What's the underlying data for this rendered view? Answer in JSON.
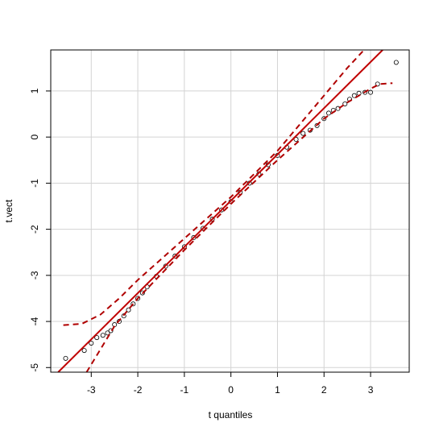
{
  "chart_data": {
    "type": "qq",
    "xlabel": "t quantiles",
    "ylabel": "t.vect",
    "xlim": [
      -3.87,
      3.83
    ],
    "ylim": [
      -5.1,
      1.89
    ],
    "xticks": [
      -3,
      -2,
      -1,
      0,
      1,
      2,
      3
    ],
    "yticks": [
      -5,
      -4,
      -3,
      -2,
      -1,
      0,
      1
    ],
    "grid": true,
    "points": {
      "color": "#000000",
      "x": [
        -3.55,
        -3.15,
        -3.0,
        -2.88,
        -2.75,
        -2.65,
        -2.58,
        -2.5,
        -2.4,
        -2.3,
        -2.2,
        -2.1,
        -2.0,
        -1.9,
        -1.8,
        -1.6,
        -1.4,
        -1.2,
        -1.0,
        -0.8,
        -0.6,
        -0.4,
        -0.2,
        0,
        0.2,
        0.4,
        0.6,
        0.8,
        1.0,
        1.2,
        1.4,
        1.55,
        1.7,
        1.85,
        2.0,
        2.1,
        2.2,
        2.3,
        2.45,
        2.55,
        2.65,
        2.75,
        2.88,
        3.0,
        3.15,
        3.55
      ],
      "y": [
        -4.8,
        -4.63,
        -4.47,
        -4.35,
        -4.3,
        -4.25,
        -4.2,
        -4.07,
        -4.0,
        -3.88,
        -3.75,
        -3.62,
        -3.5,
        -3.38,
        -3.25,
        -3.02,
        -2.8,
        -2.58,
        -2.38,
        -2.18,
        -1.98,
        -1.78,
        -1.58,
        -1.4,
        -1.2,
        -1.0,
        -0.8,
        -0.6,
        -0.4,
        -0.22,
        -0.05,
        0.08,
        0.15,
        0.25,
        0.4,
        0.52,
        0.58,
        0.62,
        0.72,
        0.82,
        0.9,
        0.95,
        0.97,
        0.97,
        1.15,
        1.62
      ]
    },
    "reference_line": {
      "color": "#c00000",
      "x": [
        -3.71,
        3.26
      ],
      "y": [
        -5.1,
        1.89
      ]
    },
    "envelope_upper": {
      "color": "#b00000",
      "x": [
        -3.6,
        -3.2,
        -2.8,
        -2.4,
        -2.0,
        -1.0,
        0,
        1.0,
        1.5,
        2.0,
        2.5,
        2.86
      ],
      "y": [
        -4.08,
        -4.05,
        -3.85,
        -3.5,
        -3.1,
        -2.2,
        -1.3,
        -0.3,
        0.3,
        0.9,
        1.5,
        1.89
      ]
    },
    "envelope_lower": {
      "color": "#b00000",
      "x": [
        -3.1,
        -2.5,
        -2.0,
        -1.0,
        0,
        1.0,
        1.5,
        2.0,
        2.5,
        3.0,
        3.2,
        3.47
      ],
      "y": [
        -5.1,
        -4.1,
        -3.5,
        -2.45,
        -1.45,
        -0.5,
        -0.05,
        0.4,
        0.75,
        1.05,
        1.15,
        1.17
      ]
    }
  }
}
